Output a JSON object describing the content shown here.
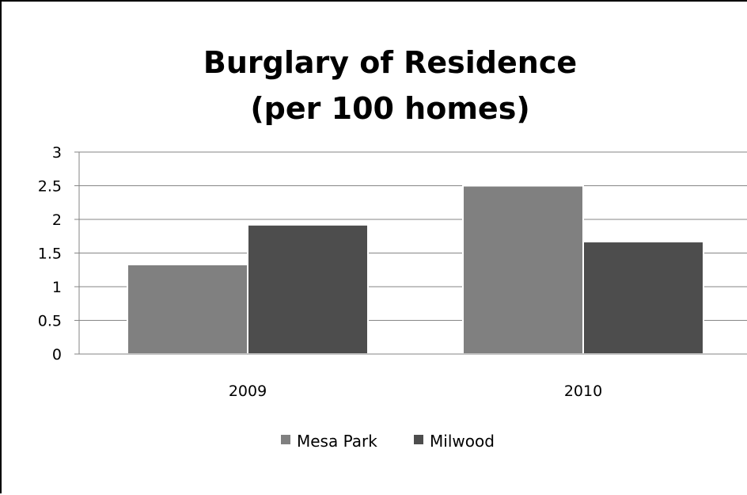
{
  "chart_data": {
    "type": "bar",
    "title_lines": [
      "Burglary of Residence",
      "(per 100 homes)"
    ],
    "xlabel": "",
    "ylabel": "",
    "categories": [
      "2009",
      "2010"
    ],
    "series": [
      {
        "name": "Mesa Park",
        "values": [
          1.33,
          2.5
        ],
        "color": "#808080"
      },
      {
        "name": "Milwood",
        "values": [
          1.92,
          1.67
        ],
        "color": "#4d4d4d"
      }
    ],
    "ylim": [
      0,
      3
    ],
    "yticks": [
      "0",
      "0.5",
      "1",
      "1.5",
      "2",
      "2.5",
      "3"
    ],
    "grid": true,
    "legend_position": "bottom"
  }
}
